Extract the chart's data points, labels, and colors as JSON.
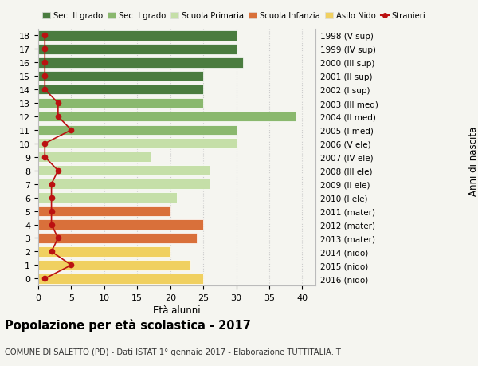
{
  "ages": [
    18,
    17,
    16,
    15,
    14,
    13,
    12,
    11,
    10,
    9,
    8,
    7,
    6,
    5,
    4,
    3,
    2,
    1,
    0
  ],
  "right_labels": [
    "1998 (V sup)",
    "1999 (IV sup)",
    "2000 (III sup)",
    "2001 (II sup)",
    "2002 (I sup)",
    "2003 (III med)",
    "2004 (II med)",
    "2005 (I med)",
    "2006 (V ele)",
    "2007 (IV ele)",
    "2008 (III ele)",
    "2009 (II ele)",
    "2010 (I ele)",
    "2011 (mater)",
    "2012 (mater)",
    "2013 (mater)",
    "2014 (nido)",
    "2015 (nido)",
    "2016 (nido)"
  ],
  "bar_values": [
    30,
    30,
    31,
    25,
    25,
    25,
    39,
    30,
    30,
    17,
    26,
    26,
    21,
    20,
    25,
    24,
    20,
    23,
    25
  ],
  "bar_colors": [
    "#4a7c3f",
    "#4a7c3f",
    "#4a7c3f",
    "#4a7c3f",
    "#4a7c3f",
    "#8ab86e",
    "#8ab86e",
    "#8ab86e",
    "#c5dfa8",
    "#c5dfa8",
    "#c5dfa8",
    "#c5dfa8",
    "#c5dfa8",
    "#d9703a",
    "#d9703a",
    "#d9703a",
    "#f0d060",
    "#f0d060",
    "#f0d060"
  ],
  "stranieri_values": [
    1,
    1,
    1,
    1,
    1,
    3,
    3,
    5,
    1,
    1,
    3,
    2,
    2,
    2,
    2,
    3,
    2,
    5,
    1
  ],
  "xlim": [
    0,
    42
  ],
  "xticks": [
    0,
    5,
    10,
    15,
    20,
    25,
    30,
    35,
    40
  ],
  "title": "Popolazione per età scolastica - 2017",
  "subtitle": "COMUNE DI SALETTO (PD) - Dati ISTAT 1° gennaio 2017 - Elaborazione TUTTITALIA.IT",
  "xlabel": "Età alunni",
  "ylabel_right": "Anni di nascita",
  "legend_labels": [
    "Sec. II grado",
    "Sec. I grado",
    "Scuola Primaria",
    "Scuola Infanzia",
    "Asilo Nido",
    "Stranieri"
  ],
  "legend_colors": [
    "#4a7c3f",
    "#8ab86e",
    "#c5dfa8",
    "#d9703a",
    "#f0d060",
    "#bb1111"
  ],
  "bg_color": "#f5f5f0",
  "bar_height": 0.75,
  "stranieri_color": "#bb1111",
  "grid_color": "#cccccc"
}
